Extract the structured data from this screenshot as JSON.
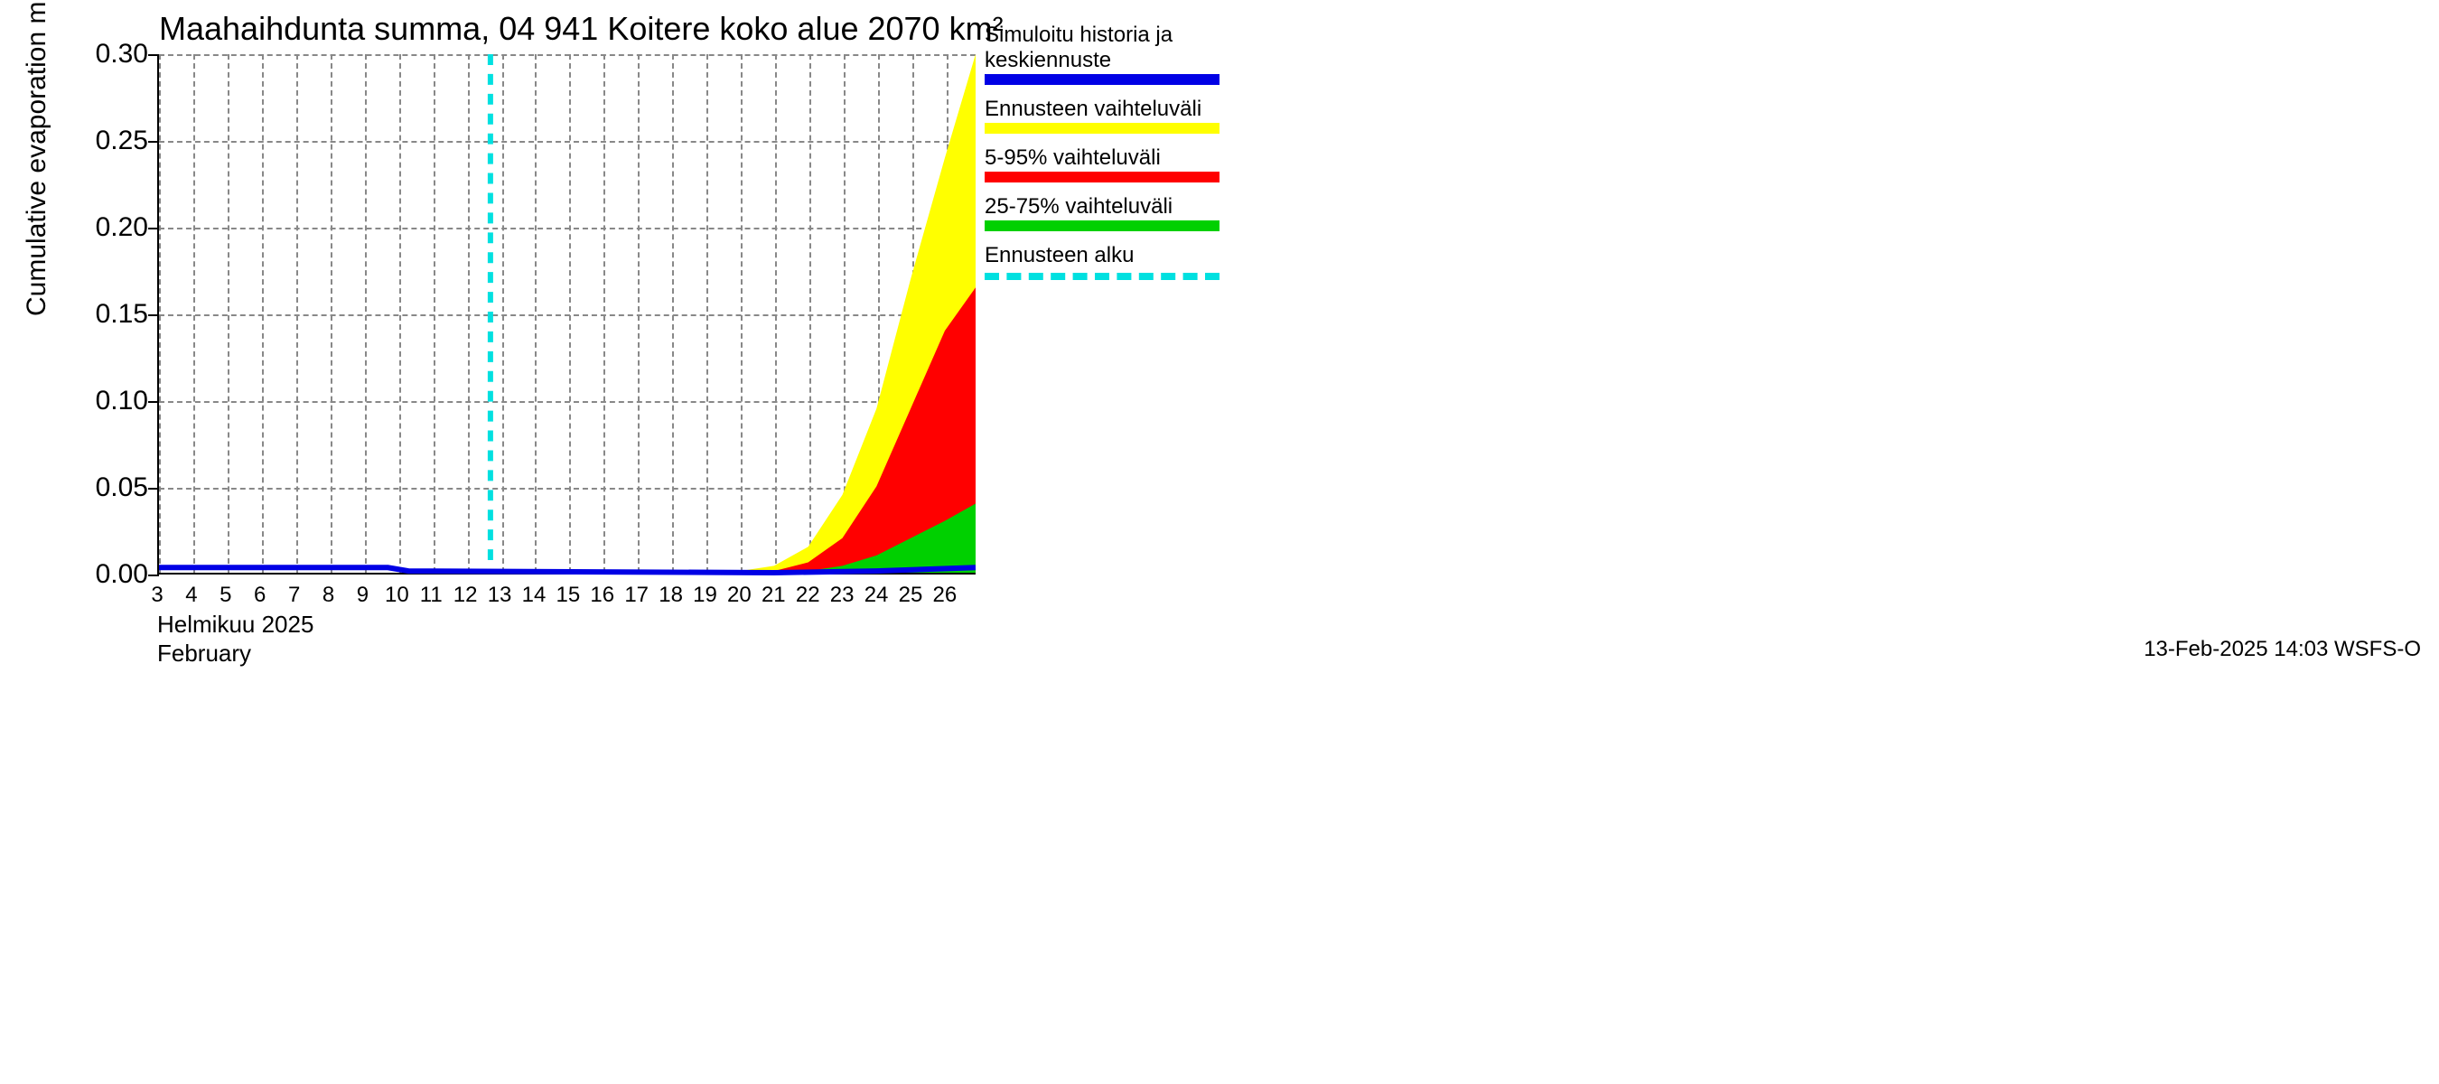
{
  "chart": {
    "type": "area-forecast",
    "title": "Maahaihdunta summa, 04 941 Koitere koko alue 2070 km²",
    "ylabel": "Cumulative evaporation   mm",
    "xsublabel1": "Helmikuu  2025",
    "xsublabel2": "February",
    "timestamp": "13-Feb-2025 14:03 WSFS-O",
    "ylim": [
      0.0,
      0.3
    ],
    "yticks": [
      0.0,
      0.05,
      0.1,
      0.15,
      0.2,
      0.25,
      0.3
    ],
    "ytick_labels": [
      "0.00",
      "0.05",
      "0.10",
      "0.15",
      "0.20",
      "0.25",
      "0.30"
    ],
    "x_days": [
      3,
      4,
      5,
      6,
      7,
      8,
      9,
      10,
      11,
      12,
      13,
      14,
      15,
      16,
      17,
      18,
      19,
      20,
      21,
      22,
      23,
      24,
      25,
      26
    ],
    "x_end": 26.9,
    "forecast_start_day": 12.7,
    "background_color": "#ffffff",
    "grid_color": "#888888",
    "axis_color": "#000000",
    "title_fontsize": 18,
    "label_fontsize": 15,
    "tick_fontsize": 14,
    "colors": {
      "blue": "#0000e5",
      "yellow": "#ffff00",
      "red": "#ff0000",
      "green": "#00d000",
      "cyan": "#00e0e0"
    },
    "series": {
      "median": [
        {
          "x": 3,
          "y": 0.003
        },
        {
          "x": 9.7,
          "y": 0.003
        },
        {
          "x": 10.3,
          "y": 0.001
        },
        {
          "x": 21,
          "y": 0.0
        },
        {
          "x": 24,
          "y": 0.001
        },
        {
          "x": 26.9,
          "y": 0.003
        }
      ],
      "p25": [
        {
          "x": 12.7,
          "y": 0.0
        },
        {
          "x": 21,
          "y": 0.0
        },
        {
          "x": 26.9,
          "y": 0.0
        }
      ],
      "p75": [
        {
          "x": 12.7,
          "y": 0.0
        },
        {
          "x": 21,
          "y": 0.0
        },
        {
          "x": 22,
          "y": 0.001
        },
        {
          "x": 23,
          "y": 0.004
        },
        {
          "x": 24,
          "y": 0.01
        },
        {
          "x": 25,
          "y": 0.02
        },
        {
          "x": 26,
          "y": 0.03
        },
        {
          "x": 26.9,
          "y": 0.04
        }
      ],
      "p5": [
        {
          "x": 12.7,
          "y": 0.0
        },
        {
          "x": 21,
          "y": 0.0
        },
        {
          "x": 26.9,
          "y": 0.0
        }
      ],
      "p95": [
        {
          "x": 12.7,
          "y": 0.0
        },
        {
          "x": 20,
          "y": 0.0
        },
        {
          "x": 21,
          "y": 0.001
        },
        {
          "x": 22,
          "y": 0.006
        },
        {
          "x": 23,
          "y": 0.02
        },
        {
          "x": 24,
          "y": 0.05
        },
        {
          "x": 25,
          "y": 0.095
        },
        {
          "x": 26,
          "y": 0.14
        },
        {
          "x": 26.9,
          "y": 0.165
        }
      ],
      "min": [
        {
          "x": 12.7,
          "y": 0.0
        },
        {
          "x": 21,
          "y": 0.0
        },
        {
          "x": 26.9,
          "y": 0.0
        }
      ],
      "max": [
        {
          "x": 12.7,
          "y": 0.0
        },
        {
          "x": 19,
          "y": 0.0
        },
        {
          "x": 20,
          "y": 0.001
        },
        {
          "x": 21,
          "y": 0.004
        },
        {
          "x": 22,
          "y": 0.015
        },
        {
          "x": 23,
          "y": 0.045
        },
        {
          "x": 24,
          "y": 0.095
        },
        {
          "x": 25,
          "y": 0.17
        },
        {
          "x": 26,
          "y": 0.24
        },
        {
          "x": 26.9,
          "y": 0.3
        }
      ]
    },
    "legend": [
      {
        "label": "Simuloitu historia ja keskiennuste",
        "type": "solid",
        "color": "#0000e5"
      },
      {
        "label": "Ennusteen vaihteluväli",
        "type": "solid",
        "color": "#ffff00"
      },
      {
        "label": "5-95% vaihteluväli",
        "type": "solid",
        "color": "#ff0000"
      },
      {
        "label": "25-75% vaihteluväli",
        "type": "solid",
        "color": "#00d000"
      },
      {
        "label": "Ennusteen alku",
        "type": "dashed",
        "color": "#00e0e0"
      }
    ]
  }
}
